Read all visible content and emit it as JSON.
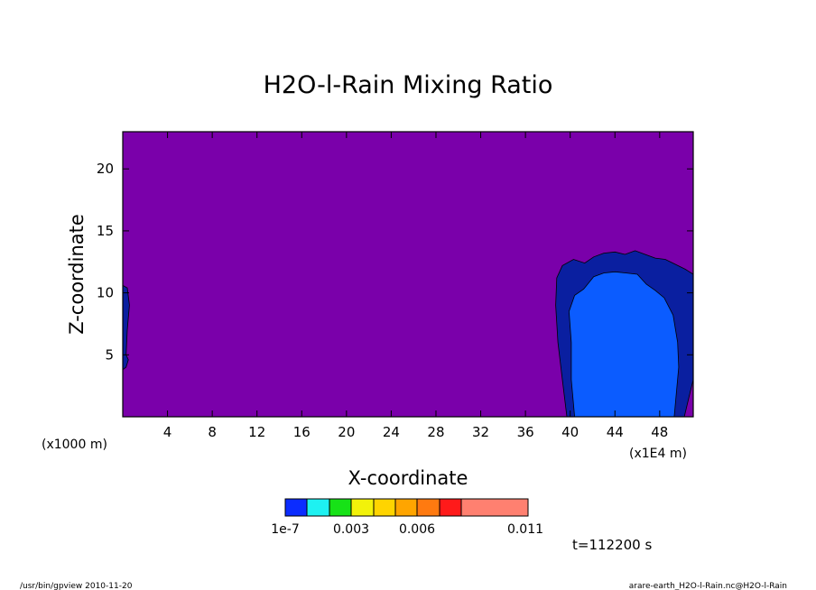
{
  "chart_data": {
    "type": "heatmap",
    "title": "H2O-l-Rain Mixing Ratio",
    "xlabel": "X-coordinate",
    "ylabel": "Z-coordinate",
    "x_unit": "(x1E4 m)",
    "y_unit": "(x1000 m)",
    "xlim": [
      0,
      51
    ],
    "ylim": [
      0,
      23
    ],
    "x_ticks": [
      4,
      8,
      12,
      16,
      20,
      24,
      28,
      32,
      36,
      40,
      44,
      48
    ],
    "y_ticks": [
      5,
      10,
      15,
      20
    ],
    "grid": false,
    "background_color": "#7a00aa",
    "time_label": "t=112200 s",
    "colorbar": {
      "colors": [
        "#0b2cff",
        "#1ef1f1",
        "#17e217",
        "#f2f20a",
        "#ffd400",
        "#ffa500",
        "#ff7a10",
        "#ff1a1a",
        "#ff8070"
      ],
      "labels": [
        {
          "text": "1e-7",
          "value": 1e-07
        },
        {
          "text": "0.003",
          "value": 0.003
        },
        {
          "text": "0.006",
          "value": 0.006
        },
        {
          "text": "0.011",
          "value": 0.011
        }
      ]
    },
    "regions": [
      {
        "name": "rain-shaft-outer",
        "color": "#0a1fa0",
        "points": [
          [
            0,
            10.6
          ],
          [
            0.4,
            10.4
          ],
          [
            0.6,
            9
          ],
          [
            0.4,
            7
          ],
          [
            0.3,
            5
          ],
          [
            0.5,
            4.6
          ],
          [
            0.3,
            4
          ],
          [
            0,
            3.8
          ]
        ]
      },
      {
        "name": "rain-core-outer",
        "color": "#0a1fa0",
        "points": [
          [
            39.7,
            0
          ],
          [
            39.3,
            3
          ],
          [
            38.9,
            6
          ],
          [
            38.7,
            9
          ],
          [
            38.8,
            11.2
          ],
          [
            39.3,
            12.2
          ],
          [
            40.3,
            12.7
          ],
          [
            41.3,
            12.4
          ],
          [
            42.1,
            12.9
          ],
          [
            43,
            13.2
          ],
          [
            44,
            13.3
          ],
          [
            44.9,
            13.1
          ],
          [
            45.8,
            13.4
          ],
          [
            46.7,
            13.1
          ],
          [
            47.6,
            12.8
          ],
          [
            48.5,
            12.7
          ],
          [
            49.4,
            12.3
          ],
          [
            50.3,
            11.9
          ],
          [
            51,
            11.5
          ],
          [
            51,
            3
          ],
          [
            50.6,
            1.5
          ],
          [
            50.2,
            0
          ]
        ]
      },
      {
        "name": "rain-core-inner",
        "color": "#0b5cff",
        "points": [
          [
            40.4,
            0
          ],
          [
            40.1,
            3
          ],
          [
            40.1,
            6
          ],
          [
            39.9,
            8.5
          ],
          [
            40.4,
            9.8
          ],
          [
            41.2,
            10.3
          ],
          [
            42.1,
            11.3
          ],
          [
            43,
            11.6
          ],
          [
            44,
            11.7
          ],
          [
            45,
            11.6
          ],
          [
            46,
            11.5
          ],
          [
            46.8,
            10.7
          ],
          [
            47.6,
            10.2
          ],
          [
            48.4,
            9.6
          ],
          [
            49.2,
            8.2
          ],
          [
            49.6,
            6
          ],
          [
            49.7,
            4
          ],
          [
            49.5,
            2
          ],
          [
            49.3,
            0
          ]
        ]
      }
    ]
  },
  "footer": {
    "left": "/usr/bin/gpview   2010-11-20",
    "right": "arare-earth_H2O-l-Rain.nc@H2O-l-Rain"
  }
}
